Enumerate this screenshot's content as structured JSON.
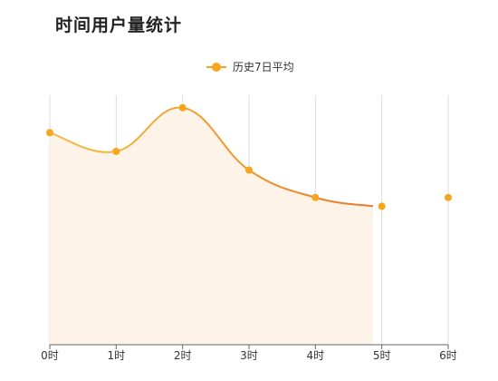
{
  "title": "时间用户量统计",
  "chart_data": {
    "type": "line",
    "title": "时间用户量统计",
    "categories": [
      "0时",
      "1时",
      "2时",
      "3时",
      "4时",
      "5时",
      "6时"
    ],
    "series": [
      {
        "name": "历史7日平均",
        "values": [
          100,
          85,
          120,
          70,
          48,
          41,
          48
        ]
      }
    ],
    "ylim": [
      -70,
      130
    ],
    "smooth": true,
    "area_fill": true,
    "legend_position": "top-center",
    "grid": "vertical",
    "colors": {
      "line_start": "#f5c04a",
      "line_mid": "#f0a030",
      "line_end": "#e87a2a",
      "marker": "#f7a51c",
      "area": "#fdf3e8",
      "grid": "#dddddd",
      "axis": "#666666"
    }
  }
}
